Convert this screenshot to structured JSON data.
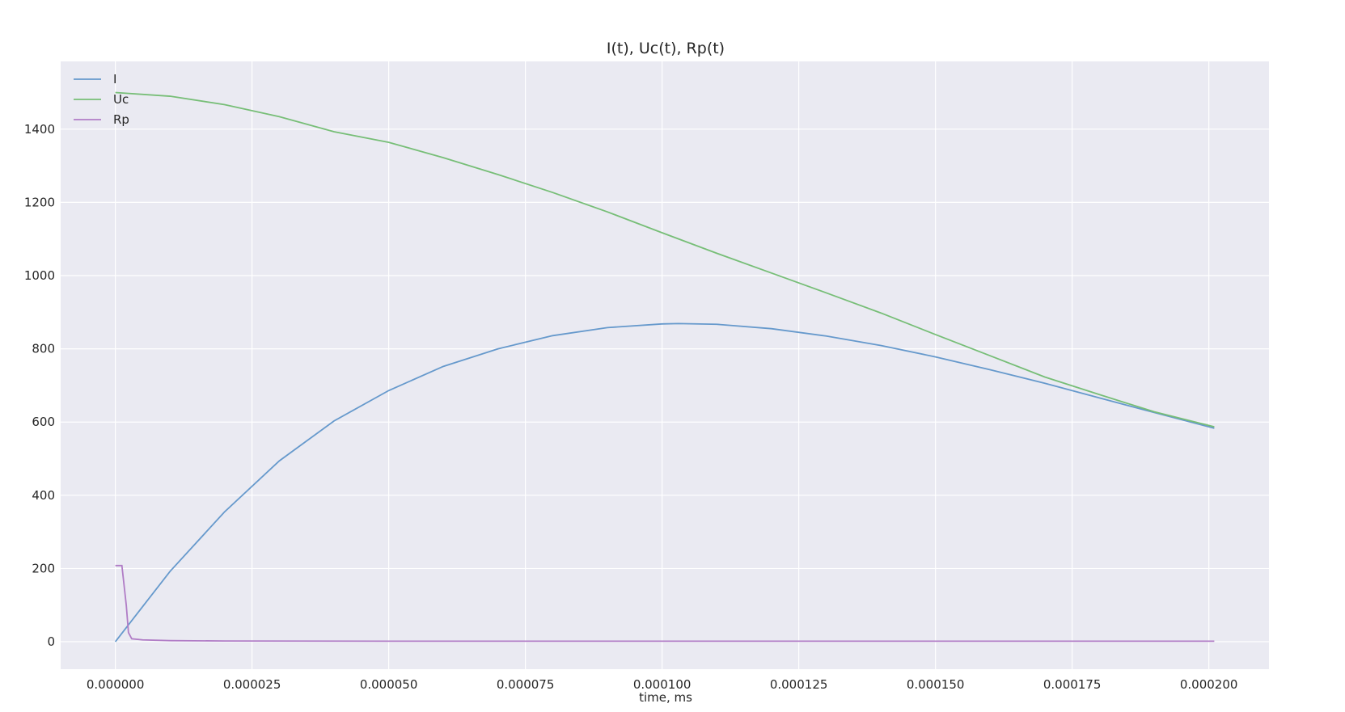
{
  "chart_data": {
    "type": "line",
    "title": "I(t), Uc(t), Rp(t)",
    "xlabel": "time, ms",
    "ylabel": "",
    "xlim": [
      -1e-05,
      0.000211
    ],
    "ylim": [
      -75,
      1585
    ],
    "xticks": [
      0,
      2.5e-05,
      5e-05,
      7.5e-05,
      0.0001,
      0.000125,
      0.00015,
      0.000175,
      0.0002
    ],
    "xtick_labels": [
      "0.000000",
      "0.000025",
      "0.000050",
      "0.000075",
      "0.000100",
      "0.000125",
      "0.000150",
      "0.000175",
      "0.000200"
    ],
    "yticks": [
      0,
      200,
      400,
      600,
      800,
      1000,
      1200,
      1400
    ],
    "ytick_labels": [
      "0",
      "200",
      "400",
      "600",
      "800",
      "1000",
      "1200",
      "1400"
    ],
    "grid": true,
    "legend_position": "top-left",
    "background": "#EAEAF2",
    "series": [
      {
        "name": "I",
        "color": "#6699CC",
        "x": [
          0,
          1e-05,
          2e-05,
          3e-05,
          4e-05,
          5e-05,
          6e-05,
          7e-05,
          8e-05,
          9e-05,
          0.0001,
          0.000103,
          0.00011,
          0.00012,
          0.00013,
          0.00014,
          0.00015,
          0.00016,
          0.00017,
          0.00018,
          0.00019,
          0.000201
        ],
        "y": [
          0,
          192,
          355,
          494,
          603,
          686,
          752,
          800,
          836,
          858,
          868,
          869,
          867,
          855,
          835,
          809,
          778,
          743,
          706,
          666,
          626,
          583
        ]
      },
      {
        "name": "Uc",
        "color": "#77BE77",
        "x": [
          0,
          1e-05,
          2e-05,
          3e-05,
          4e-05,
          5e-05,
          6e-05,
          7e-05,
          8e-05,
          9e-05,
          0.0001,
          0.00011,
          0.00012,
          0.00013,
          0.00014,
          0.00015,
          0.00016,
          0.00017,
          0.00018,
          0.00019,
          0.000201
        ],
        "y": [
          1500,
          1490,
          1467,
          1434,
          1393,
          1364,
          1322,
          1276,
          1227,
          1174,
          1117,
          1061,
          1007,
          953,
          898,
          839,
          781,
          723,
          675,
          628,
          587
        ]
      },
      {
        "name": "Rp",
        "color": "#B07CC6",
        "x": [
          0,
          1e-06,
          1.2e-06,
          2e-06,
          2.4e-06,
          3e-06,
          5e-06,
          1e-05,
          2e-05,
          5e-05,
          0.0001,
          0.00015,
          0.000201
        ],
        "y": [
          208,
          208,
          208,
          100,
          25,
          8,
          5,
          3,
          2,
          1.5,
          1.5,
          1.5,
          1.5
        ]
      }
    ]
  }
}
